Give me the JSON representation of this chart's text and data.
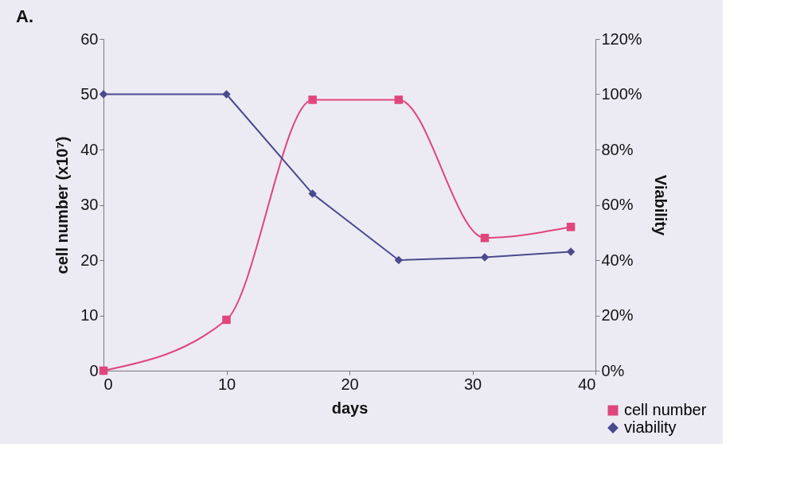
{
  "chart_data": {
    "type": "line",
    "title": "A.",
    "xlabel": "days",
    "ylabel": "cell number (x10⁷)",
    "y2label": "Viability",
    "xlim": [
      0,
      40
    ],
    "xticks": [
      0,
      10,
      20,
      30,
      40
    ],
    "ylim": [
      0,
      60
    ],
    "yticks": [
      0,
      10,
      20,
      30,
      40,
      50,
      60
    ],
    "y2lim": [
      0,
      120
    ],
    "y2ticks": [
      {
        "value": 0,
        "label": "0%"
      },
      {
        "value": 20,
        "label": "20%"
      },
      {
        "value": 40,
        "label": "40%"
      },
      {
        "value": 60,
        "label": "60%"
      },
      {
        "value": 80,
        "label": "80%"
      },
      {
        "value": 100,
        "label": "100%"
      },
      {
        "value": 120,
        "label": "120%"
      }
    ],
    "grid": false,
    "legend": "bottom right",
    "series": [
      {
        "name": "cell number",
        "color": "#e0457b",
        "marker": "square",
        "x": [
          0,
          10,
          17,
          24,
          31,
          38
        ],
        "values": [
          0,
          9.2,
          49,
          49,
          24,
          26
        ]
      },
      {
        "name": "viability",
        "color": "#4b4a8e",
        "marker": "diamond",
        "axis": "y2",
        "x": [
          0,
          10,
          17,
          24,
          31,
          38
        ],
        "values": [
          100,
          100,
          64,
          40,
          41,
          43
        ]
      }
    ]
  }
}
